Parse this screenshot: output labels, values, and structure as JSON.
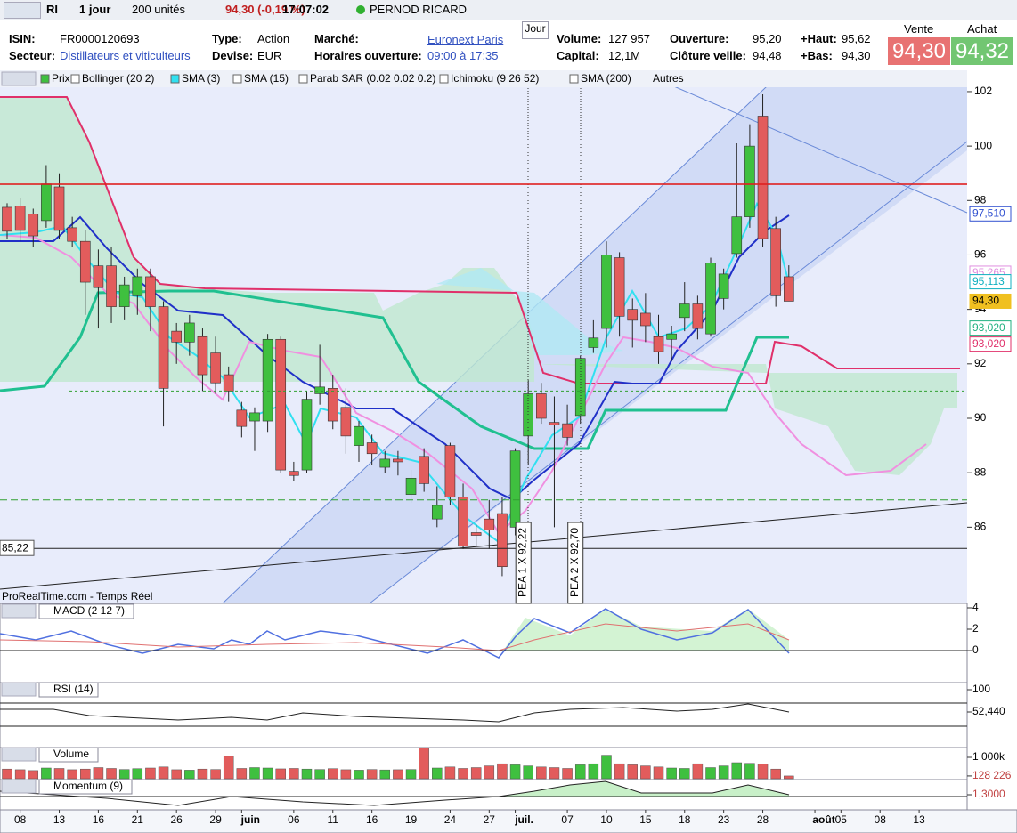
{
  "toolbar": {
    "symbol": "RI",
    "period": "1 jour",
    "units": "200 unités",
    "quote": "94,30 (-0,19 %)",
    "time": "17:07:02",
    "name": "PERNOD RICARD"
  },
  "info": {
    "isin_label": "ISIN:",
    "isin": "FR0000120693",
    "sector_label": "Secteur:",
    "sector": "Distillateurs et viticulteurs",
    "type_label": "Type:",
    "type": "Action",
    "currency_label": "Devise:",
    "currency": "EUR",
    "market_label": "Marché:",
    "market": "Euronext Paris",
    "hours_label": "Horaires ouverture:",
    "hours": "09:00 à 17:35",
    "day_tab": "Jour",
    "volume_label": "Volume:",
    "volume": "127 957",
    "capital_label": "Capital:",
    "capital": "12,1M",
    "open_label": "Ouverture:",
    "open": "95,20",
    "prev_label": "Clôture veille:",
    "prev": "94,48",
    "high_label": "+Haut:",
    "high": "95,62",
    "low_label": "+Bas:",
    "low": "94,30",
    "sell_label": "Vente",
    "sell": "94,30",
    "buy_label": "Achat",
    "buy": "94,32"
  },
  "indicator_bar": [
    "Prix",
    "Bollinger (20 2)",
    "SMA (3)",
    "SMA (15)",
    "Parab SAR (0.02 0.02 0.2)",
    "Ichimoku (9 26 52)",
    "SMA (200)",
    "Autres"
  ],
  "chart_data": {
    "type": "candlestick",
    "up_color": "#3fc03f",
    "down_color": "#e25c5c",
    "open": [
      97.75,
      97.8,
      97.5,
      97.26,
      98.5,
      97.0,
      96.5,
      95.6,
      95.6,
      94.1,
      94.5,
      95.2,
      94.1,
      93.2,
      92.8,
      93.0,
      92.4,
      91.6,
      90.3,
      89.9,
      89.9,
      92.9,
      88.05,
      88.1,
      90.9,
      91.1,
      90.4,
      89.0,
      89.1,
      88.2,
      88.5,
      87.2,
      88.6,
      86.3,
      89.0,
      87.1,
      85.8,
      86.3,
      86.5,
      86.0,
      89.35,
      90.9,
      89.85,
      89.8,
      90.1,
      92.6,
      93.3,
      95.9,
      94.0,
      93.86,
      93.0,
      92.9,
      93.7,
      94.2,
      93.1,
      94.4,
      96.05,
      97.4,
      101.1,
      96.97,
      95.2
    ],
    "high": [
      97.9,
      98.1,
      97.7,
      99.3,
      99.0,
      97.4,
      96.9,
      96.2,
      96.3,
      95.2,
      95.5,
      95.5,
      94.3,
      93.5,
      93.8,
      93.3,
      93.0,
      91.9,
      90.6,
      90.4,
      93.1,
      93.0,
      88.4,
      91.0,
      92.7,
      91.6,
      91.1,
      89.9,
      89.4,
      88.8,
      88.8,
      88.1,
      88.9,
      87.5,
      89.1,
      87.6,
      86.1,
      87.0,
      87.1,
      88.9,
      91.4,
      91.3,
      90.8,
      90.5,
      92.3,
      93.6,
      96.5,
      96.1,
      94.4,
      94.6,
      93.8,
      93.4,
      95.0,
      94.5,
      95.9,
      95.5,
      100.1,
      100.8,
      101.9,
      97.4,
      95.62
    ],
    "low": [
      96.6,
      96.5,
      96.3,
      97.0,
      96.6,
      96.3,
      93.8,
      93.3,
      93.5,
      93.6,
      93.8,
      93.2,
      89.7,
      92.0,
      92.3,
      91.0,
      90.9,
      90.6,
      89.3,
      88.8,
      89.5,
      88.0,
      87.7,
      88.0,
      90.5,
      89.6,
      88.7,
      88.4,
      88.3,
      88.0,
      87.9,
      86.9,
      87.3,
      86.0,
      86.8,
      85.2,
      85.3,
      85.2,
      84.2,
      85.7,
      88.3,
      89.8,
      86.0,
      89.0,
      89.8,
      92.4,
      92.6,
      93.0,
      92.6,
      92.8,
      92.0,
      92.1,
      93.2,
      92.9,
      93.0,
      94.0,
      95.9,
      97.0,
      96.3,
      94.1,
      94.3
    ],
    "close": [
      96.87,
      96.9,
      96.7,
      98.6,
      96.9,
      96.5,
      95.0,
      94.8,
      94.1,
      94.9,
      95.2,
      94.1,
      91.1,
      92.8,
      93.5,
      91.6,
      91.3,
      91.0,
      89.7,
      90.2,
      92.9,
      88.1,
      87.9,
      90.7,
      91.15,
      89.9,
      89.35,
      89.7,
      88.7,
      88.5,
      88.4,
      87.8,
      87.6,
      86.8,
      87.1,
      85.3,
      85.7,
      85.9,
      84.55,
      88.8,
      90.9,
      90.0,
      89.75,
      89.3,
      92.2,
      92.95,
      96.0,
      93.75,
      93.6,
      93.4,
      92.45,
      93.1,
      94.2,
      93.3,
      95.7,
      95.3,
      97.4,
      100.0,
      96.6,
      94.5,
      94.3
    ],
    "ylim": [
      83.2,
      102.75
    ],
    "yticks": [
      86,
      88,
      90,
      92,
      94,
      96,
      98,
      100,
      102
    ],
    "xlim": [
      -0.55,
      74
    ],
    "xticks": [
      {
        "value": 1,
        "label": "08"
      },
      {
        "value": 4,
        "label": "13"
      },
      {
        "value": 7,
        "label": "16"
      },
      {
        "value": 10,
        "label": "21"
      },
      {
        "value": 13,
        "label": "26"
      },
      {
        "value": 16,
        "label": "29"
      },
      {
        "value": 18,
        "label": "juin"
      },
      {
        "value": 22,
        "label": "06"
      },
      {
        "value": 25,
        "label": "11"
      },
      {
        "value": 28,
        "label": "16"
      },
      {
        "value": 31,
        "label": "19"
      },
      {
        "value": 34,
        "label": "24"
      },
      {
        "value": 37,
        "label": "27"
      },
      {
        "value": 39,
        "label": "juil."
      },
      {
        "value": 43,
        "label": "07"
      },
      {
        "value": 46,
        "label": "10"
      },
      {
        "value": 49,
        "label": "15"
      },
      {
        "value": 52,
        "label": "18"
      },
      {
        "value": 55,
        "label": "23"
      },
      {
        "value": 58,
        "label": "28"
      },
      {
        "value": 62,
        "label": "août"
      },
      {
        "value": 64,
        "label": "05"
      },
      {
        "value": 67,
        "label": "08"
      },
      {
        "value": 70,
        "label": "13"
      }
    ],
    "price_labels": [
      {
        "value": 97.51,
        "label": "97,510",
        "color": "#3050d0"
      },
      {
        "value": 95.265,
        "label": "95,265",
        "color": "#e090e0"
      },
      {
        "value": 95.113,
        "label": "95,113",
        "color": "#10b0c0"
      },
      {
        "value": 94.3,
        "label": "94,30",
        "color": "#f0c020"
      },
      {
        "value": 93.02,
        "label": "93,020",
        "color": "#20b080"
      },
      {
        "value": 93.02,
        "label": "93,020",
        "color": "#e0306a"
      }
    ],
    "support_label": {
      "value": 85.22,
      "label": "85,22"
    },
    "annotations": [
      {
        "x": 40,
        "label": "PEA 1 X 92,22"
      },
      {
        "x": 44,
        "label": "PEA 2 X 92,70"
      }
    ],
    "source": "ProRealTime.com - Temps Réel"
  },
  "panels": {
    "macd": {
      "title": "MACD (2 12 7)",
      "yticks": [
        4,
        2,
        0
      ]
    },
    "rsi": {
      "title": "RSI (14)",
      "yticks": [
        100,
        {
          "value": 52.44,
          "label": "52,440"
        }
      ]
    },
    "volume": {
      "title": "Volume",
      "yticks": [
        {
          "value": 1000000,
          "label": "1 000k"
        },
        {
          "value": 128226,
          "label": "128 226"
        }
      ],
      "values": [
        450000,
        420000,
        380000,
        500000,
        480000,
        420000,
        450000,
        520000,
        480000,
        430000,
        470000,
        500000,
        550000,
        420000,
        400000,
        450000,
        430000,
        1050000,
        480000,
        520000,
        500000,
        460000,
        480000,
        450000,
        430000,
        470000,
        420000,
        400000,
        430000,
        410000,
        420000,
        430000,
        1450000,
        500000,
        550000,
        480000,
        520000,
        600000,
        700000,
        650000,
        600000,
        550000,
        520000,
        480000,
        650000,
        700000,
        1100000,
        700000,
        650000,
        600000,
        550000,
        500000,
        480000,
        700000,
        520000,
        600000,
        750000,
        720000,
        680000,
        450000,
        128226
      ]
    },
    "momentum": {
      "title": "Momentum (9)",
      "yticks": [
        {
          "value": 1.3,
          "label": "1,3000"
        }
      ]
    }
  }
}
